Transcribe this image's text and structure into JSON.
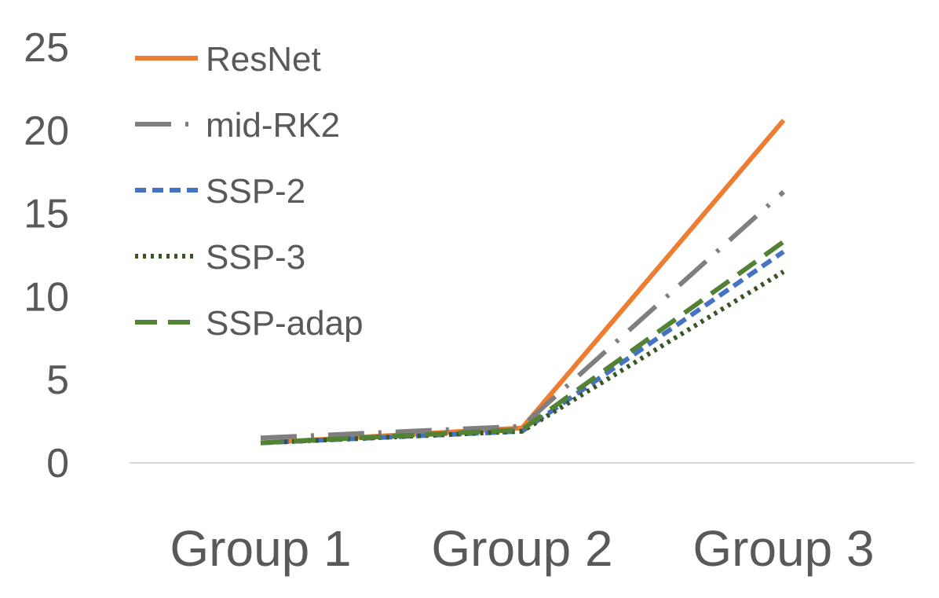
{
  "chart_data": {
    "type": "line",
    "categories": [
      "Group 1",
      "Group 2",
      "Group 3"
    ],
    "ylim": [
      0,
      25
    ],
    "yticks": [
      "0",
      "5",
      "10",
      "15",
      "20",
      "25"
    ],
    "grid": false,
    "legend_position": "top-left",
    "series": [
      {
        "name": "ResNet",
        "values": [
          1.2,
          2.1,
          20.6
        ],
        "color": "#ED7D31",
        "dash": "solid"
      },
      {
        "name": "mid-RK2",
        "values": [
          1.5,
          2.2,
          16.3
        ],
        "color": "#7F7F7F",
        "dash": "dash-dot"
      },
      {
        "name": "SSP-2",
        "values": [
          1.2,
          1.9,
          12.7
        ],
        "color": "#4472C4",
        "dash": "short-dash"
      },
      {
        "name": "SSP-3",
        "values": [
          1.2,
          1.9,
          11.5
        ],
        "color": "#375623",
        "dash": "dot"
      },
      {
        "name": "SSP-adap",
        "values": [
          1.2,
          2.0,
          13.3
        ],
        "color": "#548235",
        "dash": "long-dash"
      }
    ]
  }
}
